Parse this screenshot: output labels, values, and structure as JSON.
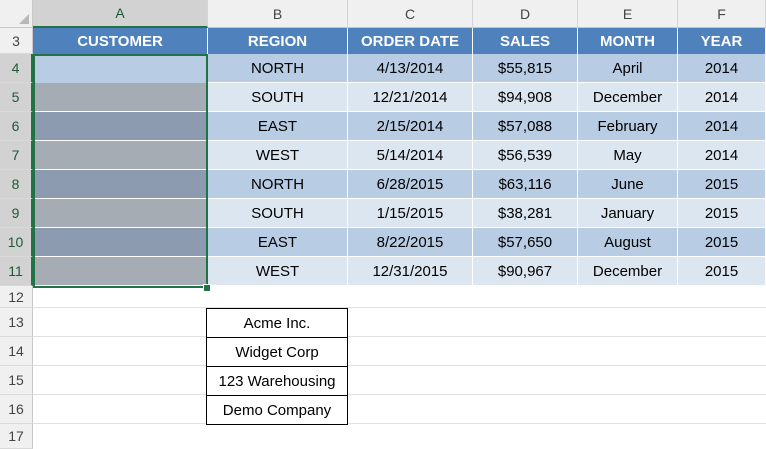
{
  "columns": [
    "A",
    "B",
    "C",
    "D",
    "E",
    "F"
  ],
  "rows": [
    "3",
    "4",
    "5",
    "6",
    "7",
    "8",
    "9",
    "10",
    "11",
    "12",
    "13",
    "14",
    "15",
    "16",
    "17"
  ],
  "selected_column": "A",
  "table": {
    "headers": [
      "CUSTOMER",
      "REGION",
      "ORDER DATE",
      "SALES",
      "MONTH",
      "YEAR"
    ],
    "rows": [
      [
        "",
        "NORTH",
        "4/13/2014",
        "$55,815",
        "April",
        "2014"
      ],
      [
        "",
        "SOUTH",
        "12/21/2014",
        "$94,908",
        "December",
        "2014"
      ],
      [
        "",
        "EAST",
        "2/15/2014",
        "$57,088",
        "February",
        "2014"
      ],
      [
        "",
        "WEST",
        "5/14/2014",
        "$56,539",
        "May",
        "2014"
      ],
      [
        "",
        "NORTH",
        "6/28/2015",
        "$63,116",
        "June",
        "2015"
      ],
      [
        "",
        "SOUTH",
        "1/15/2015",
        "$38,281",
        "January",
        "2015"
      ],
      [
        "",
        "EAST",
        "8/22/2015",
        "$57,650",
        "August",
        "2015"
      ],
      [
        "",
        "WEST",
        "12/31/2015",
        "$90,967",
        "December",
        "2015"
      ]
    ]
  },
  "customer_list": [
    "Acme Inc.",
    "Widget Corp",
    "123 Warehousing",
    "Demo Company"
  ],
  "colors": {
    "header_fill": "#4f81bd",
    "band_dark": "#b8cce4",
    "band_light": "#dce6f1",
    "selection": "#217346"
  }
}
